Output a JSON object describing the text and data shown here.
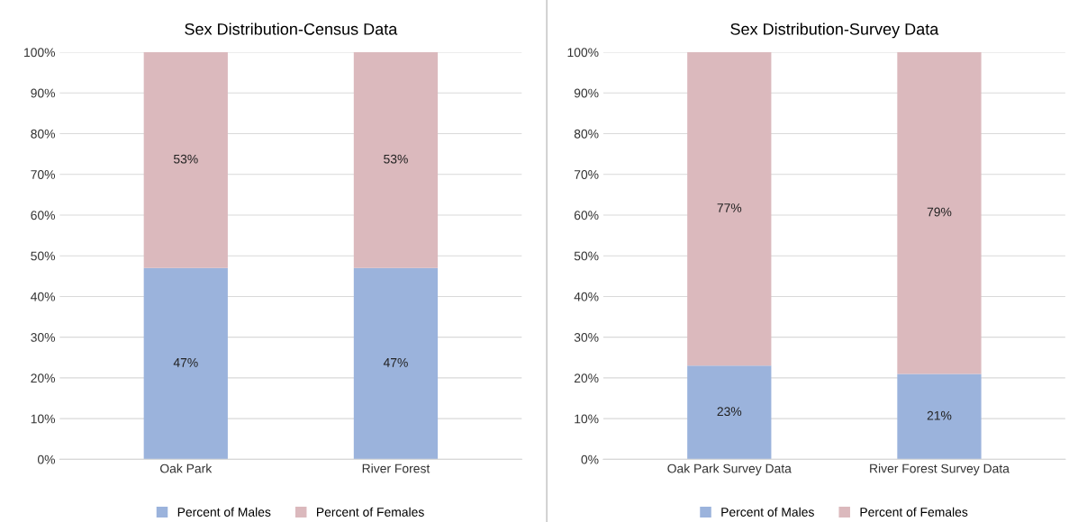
{
  "chart_data": [
    {
      "type": "bar",
      "title": "Sex Distribution-Census Data",
      "categories": [
        "Oak Park",
        "River Forest"
      ],
      "stacked": true,
      "grid": "y",
      "legend": "bottom",
      "ylim": [
        0,
        100
      ],
      "yticks": [
        {
          "value": 0,
          "label": "0%"
        },
        {
          "value": 10,
          "label": "10%"
        },
        {
          "value": 20,
          "label": "20%"
        },
        {
          "value": 30,
          "label": "30%"
        },
        {
          "value": 40,
          "label": "40%"
        },
        {
          "value": 50,
          "label": "50%"
        },
        {
          "value": 60,
          "label": "60%"
        },
        {
          "value": 70,
          "label": "70%"
        },
        {
          "value": 80,
          "label": "80%"
        },
        {
          "value": 90,
          "label": "90%"
        },
        {
          "value": 100,
          "label": "100%"
        }
      ],
      "series": [
        {
          "name": "Percent of Males",
          "color": "#9bb3dc",
          "values": [
            47,
            47
          ],
          "value_labels": [
            "47%",
            "47%"
          ]
        },
        {
          "name": "Percent of Females",
          "color": "#dbb9bd",
          "values": [
            53,
            53
          ],
          "value_labels": [
            "53%",
            "53%"
          ]
        }
      ]
    },
    {
      "type": "bar",
      "title": "Sex Distribution-Survey Data",
      "categories": [
        "Oak Park Survey Data",
        "River Forest Survey Data"
      ],
      "stacked": true,
      "grid": "y",
      "legend": "bottom",
      "ylim": [
        0,
        100
      ],
      "yticks": [
        {
          "value": 0,
          "label": "0%"
        },
        {
          "value": 10,
          "label": "10%"
        },
        {
          "value": 20,
          "label": "20%"
        },
        {
          "value": 30,
          "label": "30%"
        },
        {
          "value": 40,
          "label": "40%"
        },
        {
          "value": 50,
          "label": "50%"
        },
        {
          "value": 60,
          "label": "60%"
        },
        {
          "value": 70,
          "label": "70%"
        },
        {
          "value": 80,
          "label": "80%"
        },
        {
          "value": 90,
          "label": "90%"
        },
        {
          "value": 100,
          "label": "100%"
        }
      ],
      "series": [
        {
          "name": "Percent of Males",
          "color": "#9bb3dc",
          "values": [
            23,
            21
          ],
          "value_labels": [
            "23%",
            "21%"
          ]
        },
        {
          "name": "Percent of Females",
          "color": "#dbb9bd",
          "values": [
            77,
            79
          ],
          "value_labels": [
            "77%",
            "79%"
          ]
        }
      ]
    }
  ]
}
